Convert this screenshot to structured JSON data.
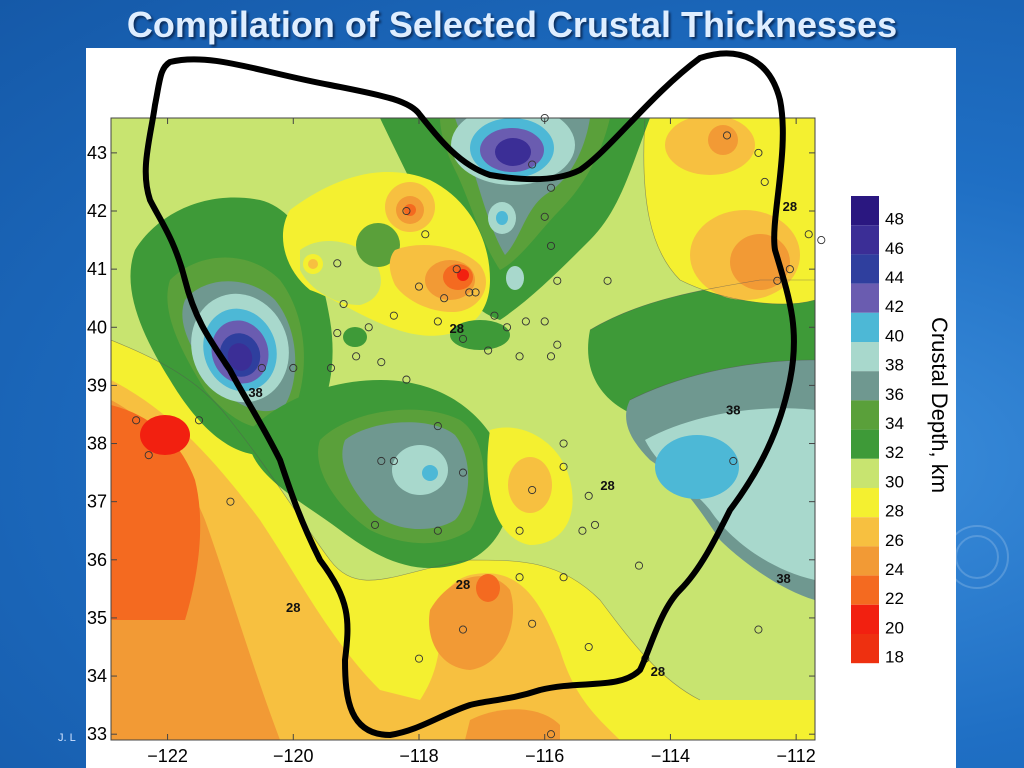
{
  "slide": {
    "title": "Compilation of Selected Crustal Thicknesses",
    "footer": "J. L"
  },
  "colors": {
    "background": "#1f6fc4",
    "title": "#dfeeff",
    "outline": "#000000"
  },
  "chart_data": {
    "type": "heatmap",
    "title": "",
    "xlabel": "",
    "ylabel": "",
    "x_ticks": [
      -122,
      -120,
      -118,
      -116,
      -114,
      -112
    ],
    "y_ticks": [
      33,
      34,
      35,
      36,
      37,
      38,
      39,
      40,
      41,
      42,
      43
    ],
    "xlim": [
      -122.9,
      -111.7
    ],
    "ylim": [
      32.9,
      43.6
    ],
    "colorbar": {
      "label": "Crustal Depth, km",
      "levels": [
        48,
        46,
        44,
        42,
        40,
        38,
        36,
        34,
        32,
        30,
        28,
        26,
        24,
        22,
        20,
        18
      ],
      "colors": [
        "#2a1780",
        "#3b2e96",
        "#2f3f9e",
        "#6a5cb0",
        "#4db8d6",
        "#a8d8cc",
        "#6f9890",
        "#5aa03a",
        "#3e9a38",
        "#c8e470",
        "#f4f030",
        "#f7c040",
        "#f29a35",
        "#f46a20",
        "#f22010",
        "#ee3010"
      ]
    },
    "contour_labels": [
      {
        "text": "28",
        "lon": -112.1,
        "lat": 42.0
      },
      {
        "text": "28",
        "lon": -117.4,
        "lat": 39.9
      },
      {
        "text": "38",
        "lon": -120.6,
        "lat": 38.8
      },
      {
        "text": "38",
        "lon": -113.0,
        "lat": 38.5
      },
      {
        "text": "28",
        "lon": -115.0,
        "lat": 37.2
      },
      {
        "text": "28",
        "lon": -120.0,
        "lat": 35.1
      },
      {
        "text": "28",
        "lon": -117.3,
        "lat": 35.5
      },
      {
        "text": "38",
        "lon": -112.2,
        "lat": 35.6
      },
      {
        "text": "28",
        "lon": -114.2,
        "lat": 34.0
      }
    ],
    "sample_points": [
      [
        -116.0,
        43.6
      ],
      [
        -115.9,
        42.4
      ],
      [
        -116.2,
        42.8
      ],
      [
        -116.0,
        41.9
      ],
      [
        -115.9,
        41.4
      ],
      [
        -115.8,
        40.8
      ],
      [
        -115.0,
        40.8
      ],
      [
        -117.9,
        41.6
      ],
      [
        -117.4,
        41.0
      ],
      [
        -117.6,
        40.5
      ],
      [
        -118.0,
        40.7
      ],
      [
        -117.2,
        40.6
      ],
      [
        -116.8,
        40.2
      ],
      [
        -116.6,
        40.0
      ],
      [
        -116.3,
        40.1
      ],
      [
        -116.0,
        40.1
      ],
      [
        -115.8,
        39.7
      ],
      [
        -115.9,
        39.5
      ],
      [
        -116.4,
        39.5
      ],
      [
        -116.9,
        39.6
      ],
      [
        -117.3,
        39.8
      ],
      [
        -117.7,
        40.1
      ],
      [
        -118.4,
        40.2
      ],
      [
        -118.8,
        40.0
      ],
      [
        -119.2,
        40.4
      ],
      [
        -119.0,
        39.5
      ],
      [
        -118.6,
        39.4
      ],
      [
        -118.2,
        39.1
      ],
      [
        -119.4,
        39.3
      ],
      [
        -120.0,
        39.3
      ],
      [
        -117.7,
        38.3
      ],
      [
        -118.4,
        37.7
      ],
      [
        -118.6,
        37.7
      ],
      [
        -117.3,
        37.5
      ],
      [
        -116.2,
        37.2
      ],
      [
        -116.4,
        36.5
      ],
      [
        -115.7,
        38.0
      ],
      [
        -115.7,
        37.6
      ],
      [
        -115.3,
        37.1
      ],
      [
        -115.2,
        36.6
      ],
      [
        -115.4,
        36.5
      ],
      [
        -114.5,
        35.9
      ],
      [
        -113.0,
        37.7
      ],
      [
        -112.5,
        42.5
      ],
      [
        -112.6,
        43.0
      ],
      [
        -113.1,
        43.3
      ],
      [
        -112.1,
        41.0
      ],
      [
        -112.3,
        40.8
      ],
      [
        -111.8,
        41.6
      ],
      [
        -111.6,
        41.5
      ],
      [
        -122.5,
        38.4
      ],
      [
        -122.3,
        37.8
      ],
      [
        -121.5,
        38.4
      ],
      [
        -121.0,
        37.0
      ],
      [
        -117.7,
        36.5
      ],
      [
        -118.7,
        36.6
      ],
      [
        -115.7,
        35.7
      ],
      [
        -116.4,
        35.7
      ],
      [
        -116.2,
        34.9
      ],
      [
        -117.3,
        34.8
      ],
      [
        -118.0,
        34.3
      ],
      [
        -115.3,
        34.5
      ],
      [
        -114.4,
        34.3
      ],
      [
        -112.6,
        34.8
      ],
      [
        -115.9,
        33.0
      ],
      [
        -119.3,
        41.1
      ],
      [
        -118.2,
        42.0
      ],
      [
        -117.1,
        40.6
      ],
      [
        -119.3,
        39.9
      ],
      [
        -120.5,
        39.3
      ]
    ]
  }
}
